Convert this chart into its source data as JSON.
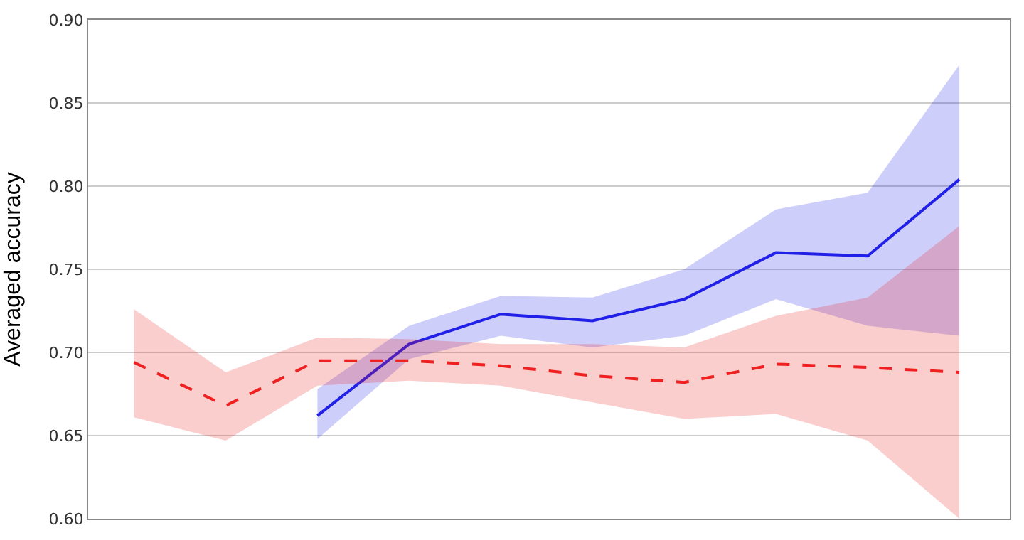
{
  "chart_data": {
    "type": "line",
    "ylabel": "Averaged accuracy",
    "categories": [
      null,
      null,
      null,
      null,
      null,
      null,
      null,
      null,
      null,
      null
    ],
    "series": [
      {
        "color": "#2020e8",
        "line_style": "solid",
        "values": [
          null,
          null,
          0.662,
          0.705,
          0.723,
          0.719,
          0.732,
          0.76,
          0.758,
          0.804
        ],
        "lower": [
          null,
          null,
          0.648,
          0.696,
          0.71,
          0.703,
          0.71,
          0.732,
          0.716,
          0.71
        ],
        "upper": [
          null,
          null,
          0.678,
          0.716,
          0.734,
          0.733,
          0.75,
          0.786,
          0.796,
          0.873
        ]
      },
      {
        "color": "#ee2020",
        "line_style": "dashed",
        "values": [
          0.694,
          0.668,
          0.695,
          0.695,
          0.692,
          0.686,
          0.682,
          0.693,
          0.691,
          0.688
        ],
        "lower": [
          0.661,
          0.647,
          0.68,
          0.683,
          0.68,
          0.67,
          0.66,
          0.663,
          0.647,
          0.6
        ],
        "upper": [
          0.726,
          0.688,
          0.709,
          0.708,
          0.705,
          0.705,
          0.703,
          0.722,
          0.733,
          0.776
        ]
      }
    ],
    "ylim": [
      0.6,
      0.9
    ],
    "yticks": [
      {
        "value": 0.6,
        "label": "0.60"
      },
      {
        "value": 0.65,
        "label": "0.65"
      },
      {
        "value": 0.7,
        "label": "0.70"
      },
      {
        "value": 0.75,
        "label": "0.75"
      },
      {
        "value": 0.8,
        "label": "0.80"
      },
      {
        "value": 0.85,
        "label": "0.85"
      },
      {
        "value": 0.9,
        "label": "0.90"
      }
    ],
    "grid": "y"
  }
}
